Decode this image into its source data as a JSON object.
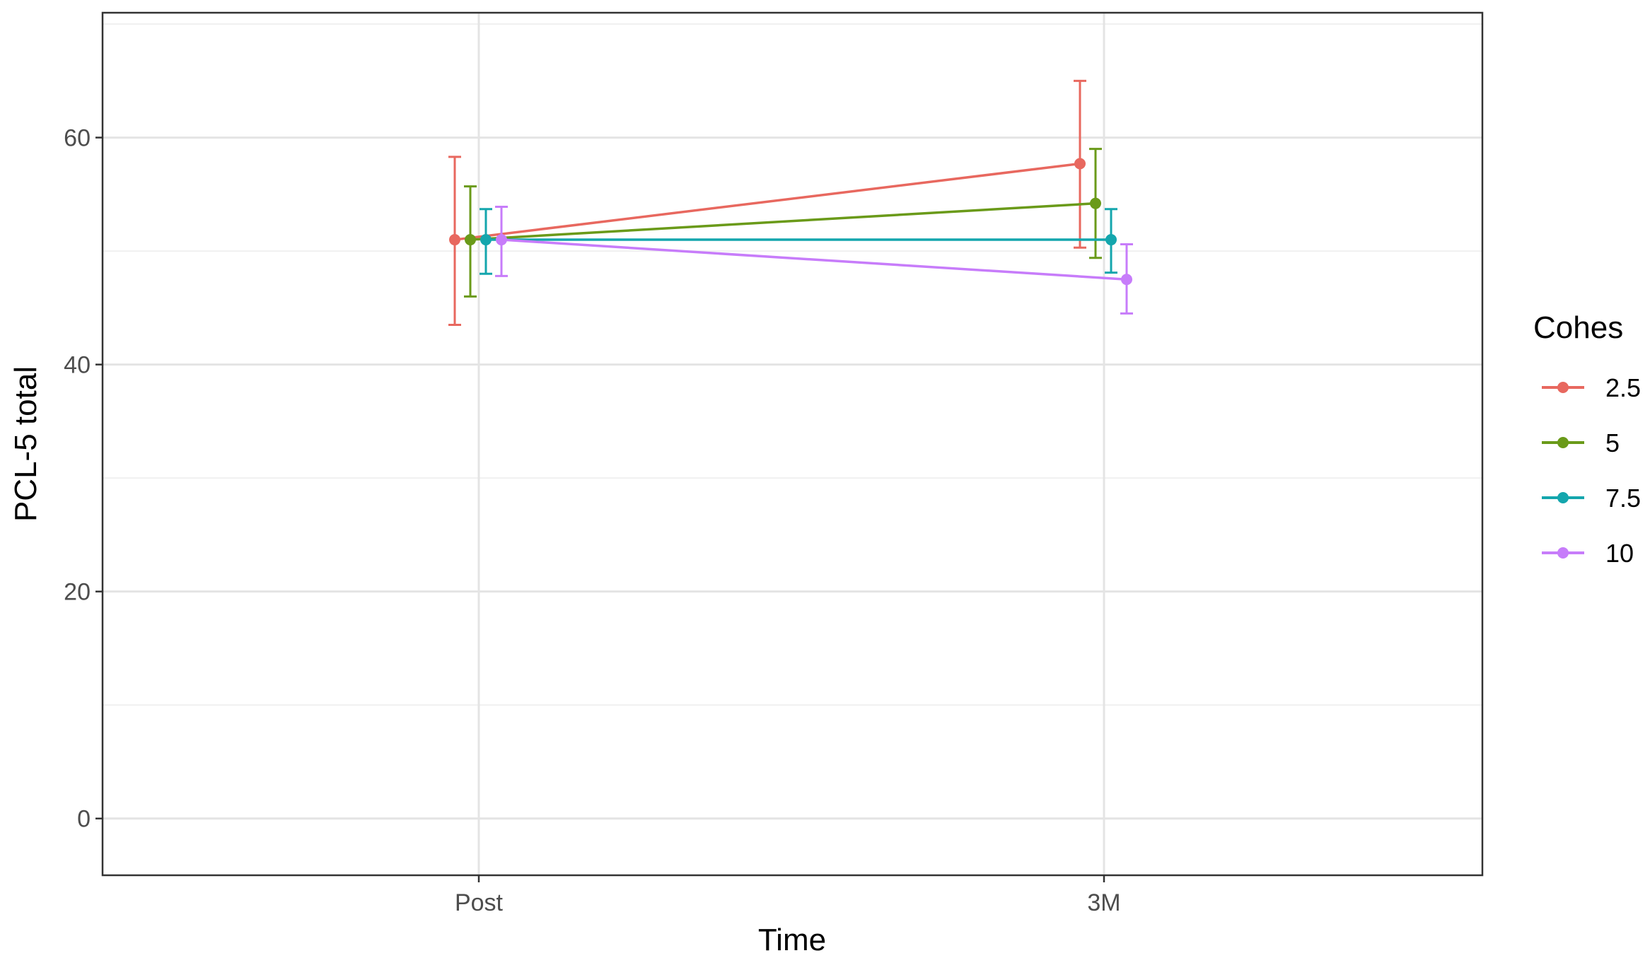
{
  "chart_data": {
    "type": "line",
    "xlabel": "Time",
    "ylabel": "PCL-5 total",
    "categories": [
      "Post",
      "3M"
    ],
    "ylim": [
      -5,
      71
    ],
    "y_ticks": [
      0,
      20,
      40,
      60
    ],
    "y_tick_labels": [
      "0",
      "20",
      "40",
      "60"
    ],
    "grid": true,
    "error_bars": true,
    "legend": {
      "title": "Cohes",
      "position": "right"
    },
    "series": [
      {
        "name": "2.5",
        "color": "#e8685f",
        "values": [
          51.0,
          57.7
        ],
        "lower": [
          43.5,
          50.3
        ],
        "upper": [
          58.3,
          65.0
        ]
      },
      {
        "name": "5",
        "color": "#6a9a19",
        "values": [
          51.0,
          54.2
        ],
        "lower": [
          46.0,
          49.4
        ],
        "upper": [
          55.7,
          59.0
        ]
      },
      {
        "name": "7.5",
        "color": "#14a6ad",
        "values": [
          51.0,
          51.0
        ],
        "lower": [
          48.0,
          48.1
        ],
        "upper": [
          53.7,
          53.7
        ]
      },
      {
        "name": "10",
        "color": "#c77cfa",
        "values": [
          51.0,
          47.5
        ],
        "lower": [
          47.8,
          44.5
        ],
        "upper": [
          53.9,
          50.6
        ]
      }
    ]
  }
}
